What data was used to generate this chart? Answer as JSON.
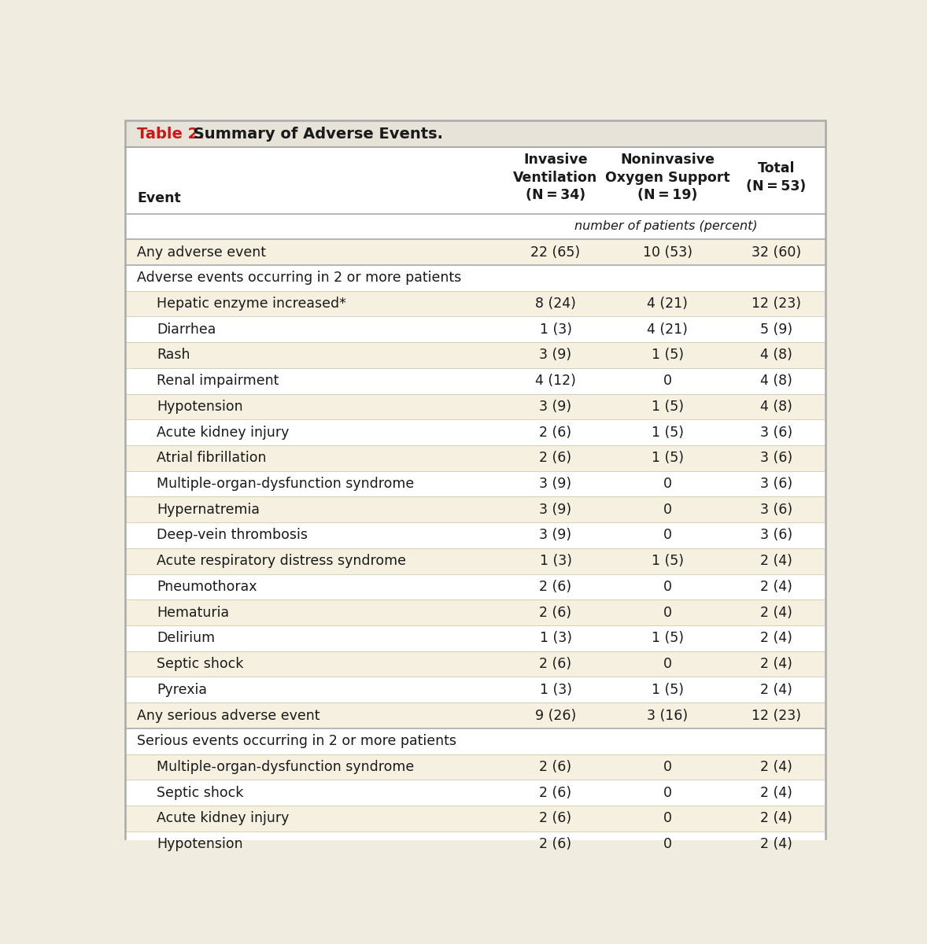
{
  "title_red": "Table 2.",
  "title_black": " Summary of Adverse Events.",
  "col_headers": [
    [
      "Invasive",
      "Ventilation",
      "(N = 34)"
    ],
    [
      "Noninvasive",
      "Oxygen Support",
      "(N = 19)"
    ],
    [
      "Total",
      "(N = 53)"
    ]
  ],
  "subheader": "number of patients (percent)",
  "event_col_label": "Event",
  "rows": [
    {
      "label": "Any adverse event",
      "indent": 0,
      "shaded": true,
      "section": false,
      "col1": "22 (65)",
      "col2": "10 (53)",
      "col3": "32 (60)"
    },
    {
      "label": "Adverse events occurring in 2 or more patients",
      "indent": 0,
      "shaded": false,
      "section": true,
      "col1": "",
      "col2": "",
      "col3": ""
    },
    {
      "label": "Hepatic enzyme increased*",
      "indent": 1,
      "shaded": true,
      "section": false,
      "col1": "8 (24)",
      "col2": "4 (21)",
      "col3": "12 (23)"
    },
    {
      "label": "Diarrhea",
      "indent": 1,
      "shaded": false,
      "section": false,
      "col1": "1 (3)",
      "col2": "4 (21)",
      "col3": "5 (9)"
    },
    {
      "label": "Rash",
      "indent": 1,
      "shaded": true,
      "section": false,
      "col1": "3 (9)",
      "col2": "1 (5)",
      "col3": "4 (8)"
    },
    {
      "label": "Renal impairment",
      "indent": 1,
      "shaded": false,
      "section": false,
      "col1": "4 (12)",
      "col2": "0",
      "col3": "4 (8)"
    },
    {
      "label": "Hypotension",
      "indent": 1,
      "shaded": true,
      "section": false,
      "col1": "3 (9)",
      "col2": "1 (5)",
      "col3": "4 (8)"
    },
    {
      "label": "Acute kidney injury",
      "indent": 1,
      "shaded": false,
      "section": false,
      "col1": "2 (6)",
      "col2": "1 (5)",
      "col3": "3 (6)"
    },
    {
      "label": "Atrial fibrillation",
      "indent": 1,
      "shaded": true,
      "section": false,
      "col1": "2 (6)",
      "col2": "1 (5)",
      "col3": "3 (6)"
    },
    {
      "label": "Multiple-organ-dysfunction syndrome",
      "indent": 1,
      "shaded": false,
      "section": false,
      "col1": "3 (9)",
      "col2": "0",
      "col3": "3 (6)"
    },
    {
      "label": "Hypernatremia",
      "indent": 1,
      "shaded": true,
      "section": false,
      "col1": "3 (9)",
      "col2": "0",
      "col3": "3 (6)"
    },
    {
      "label": "Deep-vein thrombosis",
      "indent": 1,
      "shaded": false,
      "section": false,
      "col1": "3 (9)",
      "col2": "0",
      "col3": "3 (6)"
    },
    {
      "label": "Acute respiratory distress syndrome",
      "indent": 1,
      "shaded": true,
      "section": false,
      "col1": "1 (3)",
      "col2": "1 (5)",
      "col3": "2 (4)"
    },
    {
      "label": "Pneumothorax",
      "indent": 1,
      "shaded": false,
      "section": false,
      "col1": "2 (6)",
      "col2": "0",
      "col3": "2 (4)"
    },
    {
      "label": "Hematuria",
      "indent": 1,
      "shaded": true,
      "section": false,
      "col1": "2 (6)",
      "col2": "0",
      "col3": "2 (4)"
    },
    {
      "label": "Delirium",
      "indent": 1,
      "shaded": false,
      "section": false,
      "col1": "1 (3)",
      "col2": "1 (5)",
      "col3": "2 (4)"
    },
    {
      "label": "Septic shock",
      "indent": 1,
      "shaded": true,
      "section": false,
      "col1": "2 (6)",
      "col2": "0",
      "col3": "2 (4)"
    },
    {
      "label": "Pyrexia",
      "indent": 1,
      "shaded": false,
      "section": false,
      "col1": "1 (3)",
      "col2": "1 (5)",
      "col3": "2 (4)"
    },
    {
      "label": "Any serious adverse event",
      "indent": 0,
      "shaded": true,
      "section": false,
      "col1": "9 (26)",
      "col2": "3 (16)",
      "col3": "12 (23)"
    },
    {
      "label": "Serious events occurring in 2 or more patients",
      "indent": 0,
      "shaded": false,
      "section": true,
      "col1": "",
      "col2": "",
      "col3": ""
    },
    {
      "label": "Multiple-organ-dysfunction syndrome",
      "indent": 1,
      "shaded": true,
      "section": false,
      "col1": "2 (6)",
      "col2": "0",
      "col3": "2 (4)"
    },
    {
      "label": "Septic shock",
      "indent": 1,
      "shaded": false,
      "section": false,
      "col1": "2 (6)",
      "col2": "0",
      "col3": "2 (4)"
    },
    {
      "label": "Acute kidney injury",
      "indent": 1,
      "shaded": true,
      "section": false,
      "col1": "2 (6)",
      "col2": "0",
      "col3": "2 (4)"
    },
    {
      "label": "Hypotension",
      "indent": 1,
      "shaded": false,
      "section": false,
      "col1": "2 (6)",
      "col2": "0",
      "col3": "2 (4)"
    }
  ],
  "title_bg": "#e8e3d8",
  "shaded_color": "#f5f0e0",
  "white_color": "#ffffff",
  "header_bg": "#ffffff",
  "border_color": "#aaaaaa",
  "text_color": "#1a1a1a",
  "red_color": "#c8191a",
  "font_size": 12.5,
  "header_font_size": 12.5,
  "title_font_size": 14.0,
  "subheader_font_size": 11.5
}
